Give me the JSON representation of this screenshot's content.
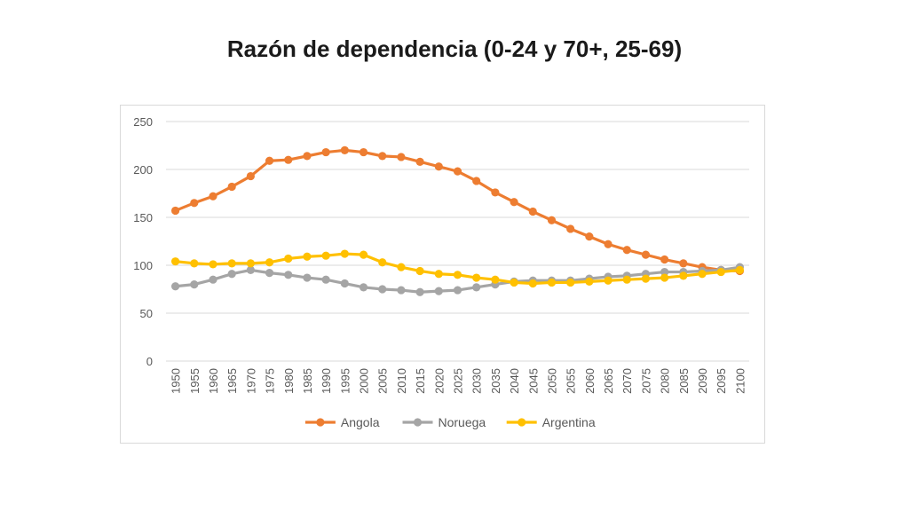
{
  "slide": {
    "title": "Razón de dependencia (0-24 y 70+, 25-69)"
  },
  "chart_data": {
    "type": "line",
    "title": "",
    "xlabel": "",
    "ylabel": "",
    "ylim": [
      0,
      250
    ],
    "yticks": [
      0,
      50,
      100,
      150,
      200,
      250
    ],
    "grid": true,
    "legend_position": "bottom",
    "categories": [
      "1950",
      "1955",
      "1960",
      "1965",
      "1970",
      "1975",
      "1980",
      "1985",
      "1990",
      "1995",
      "2000",
      "2005",
      "2010",
      "2015",
      "2020",
      "2025",
      "2030",
      "2035",
      "2040",
      "2045",
      "2050",
      "2055",
      "2060",
      "2065",
      "2070",
      "2075",
      "2080",
      "2085",
      "2090",
      "2095",
      "2100"
    ],
    "series": [
      {
        "name": "Angola",
        "color": "#ED7D31",
        "values": [
          157,
          165,
          172,
          182,
          193,
          209,
          210,
          214,
          218,
          220,
          218,
          214,
          213,
          208,
          203,
          198,
          188,
          176,
          166,
          156,
          147,
          138,
          130,
          122,
          116,
          111,
          106,
          102,
          98,
          95,
          94
        ]
      },
      {
        "name": "Noruega",
        "color": "#A5A5A5",
        "values": [
          78,
          80,
          85,
          91,
          95,
          92,
          90,
          87,
          85,
          81,
          77,
          75,
          74,
          72,
          73,
          74,
          77,
          80,
          83,
          84,
          84,
          84,
          86,
          88,
          89,
          91,
          93,
          93,
          94,
          95,
          98
        ]
      },
      {
        "name": "Argentina",
        "color": "#FFC000",
        "values": [
          104,
          102,
          101,
          102,
          102,
          103,
          107,
          109,
          110,
          112,
          111,
          103,
          98,
          94,
          91,
          90,
          87,
          85,
          82,
          81,
          82,
          82,
          83,
          84,
          85,
          86,
          87,
          89,
          91,
          93,
          95
        ]
      }
    ]
  }
}
